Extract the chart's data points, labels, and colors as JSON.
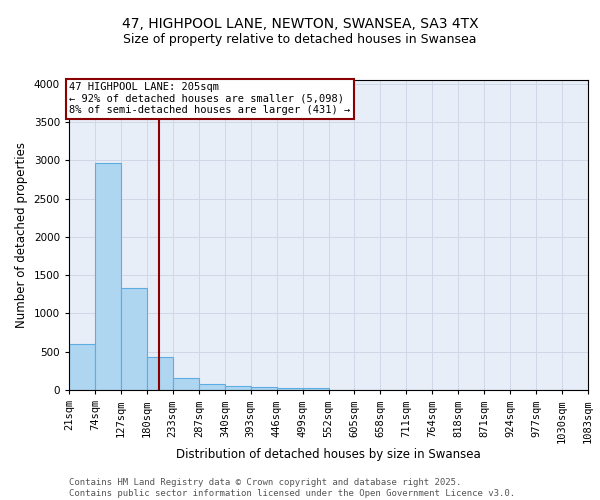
{
  "title_line1": "47, HIGHPOOL LANE, NEWTON, SWANSEA, SA3 4TX",
  "title_line2": "Size of property relative to detached houses in Swansea",
  "xlabel": "Distribution of detached houses by size in Swansea",
  "ylabel": "Number of detached properties",
  "bin_labels": [
    "21sqm",
    "74sqm",
    "127sqm",
    "180sqm",
    "233sqm",
    "287sqm",
    "340sqm",
    "393sqm",
    "446sqm",
    "499sqm",
    "552sqm",
    "605sqm",
    "658sqm",
    "711sqm",
    "764sqm",
    "818sqm",
    "871sqm",
    "924sqm",
    "977sqm",
    "1030sqm",
    "1083sqm"
  ],
  "bin_edges": [
    21,
    74,
    127,
    180,
    233,
    287,
    340,
    393,
    446,
    499,
    552,
    605,
    658,
    711,
    764,
    818,
    871,
    924,
    977,
    1030,
    1083
  ],
  "bar_heights": [
    600,
    2970,
    1330,
    430,
    160,
    80,
    55,
    40,
    30,
    30,
    0,
    0,
    0,
    0,
    0,
    0,
    0,
    0,
    0,
    0
  ],
  "bar_color": "#AED6F1",
  "bar_edge_color": "#5DADE2",
  "vline_x": 205,
  "vline_color": "#8B0000",
  "annotation_text": "47 HIGHPOOL LANE: 205sqm\n← 92% of detached houses are smaller (5,098)\n8% of semi-detached houses are larger (431) →",
  "annotation_box_color": "#8B0000",
  "annotation_bg": "white",
  "ylim": [
    0,
    4050
  ],
  "yticks": [
    0,
    500,
    1000,
    1500,
    2000,
    2500,
    3000,
    3500,
    4000
  ],
  "grid_color": "#D0D8E8",
  "bg_color": "#E8EEF8",
  "footer_line1": "Contains HM Land Registry data © Crown copyright and database right 2025.",
  "footer_line2": "Contains public sector information licensed under the Open Government Licence v3.0.",
  "title_fontsize": 10,
  "subtitle_fontsize": 9,
  "axis_label_fontsize": 8.5,
  "tick_fontsize": 7.5,
  "annotation_fontsize": 7.5,
  "footer_fontsize": 6.5
}
